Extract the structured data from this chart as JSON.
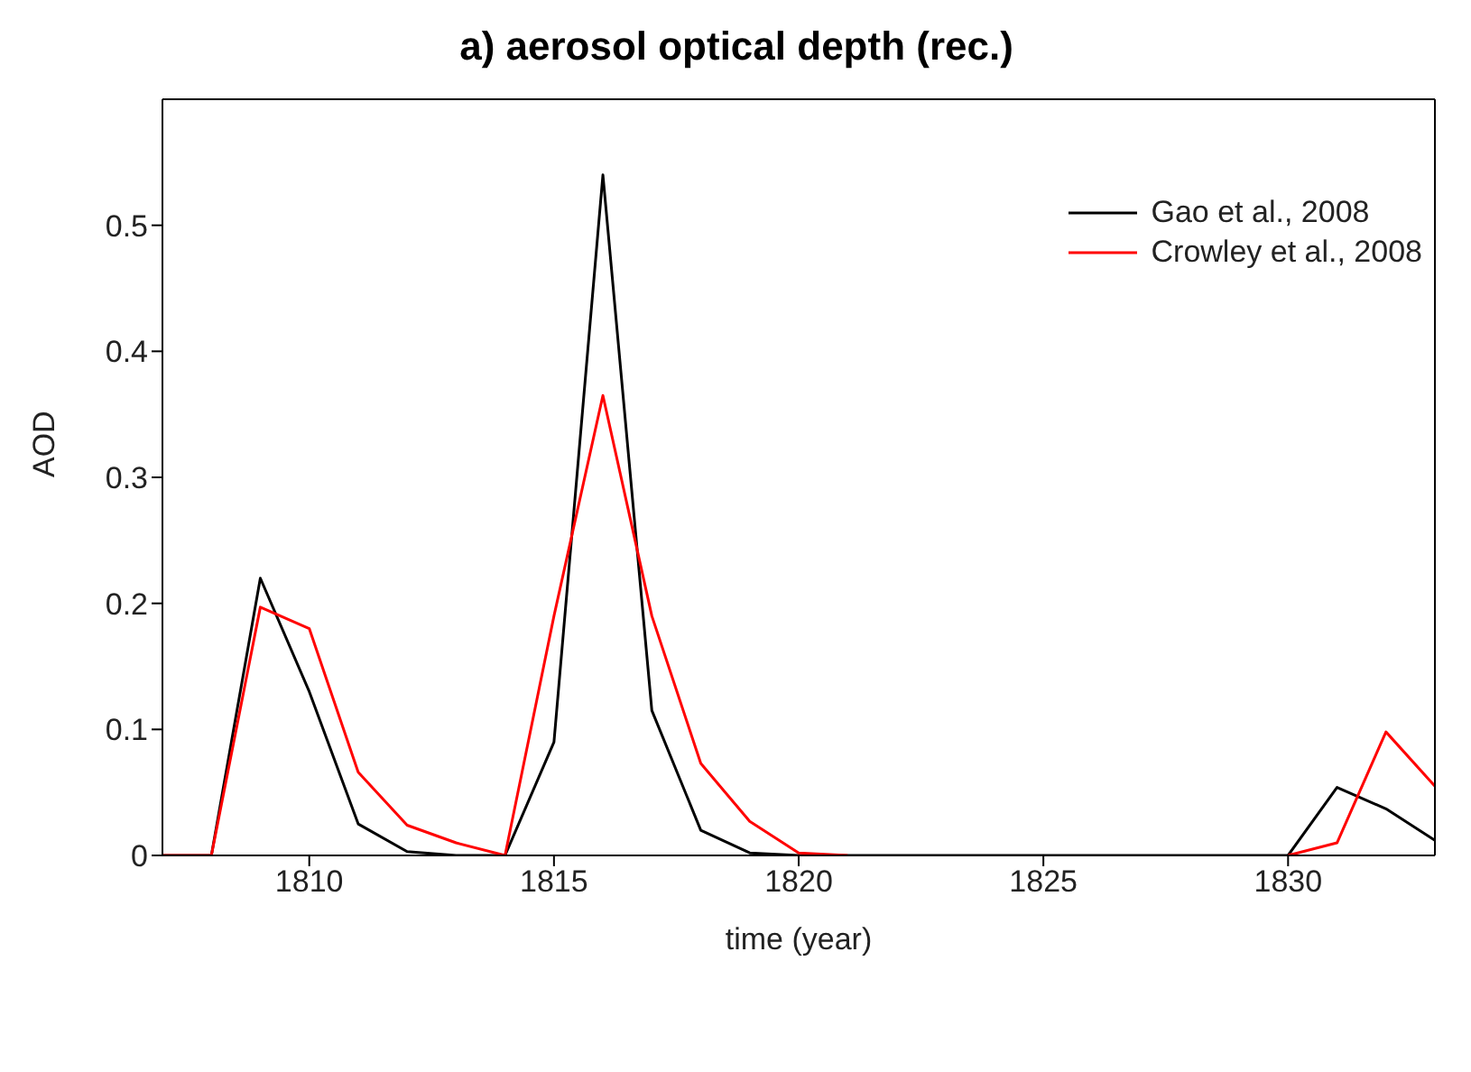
{
  "chart_data": {
    "type": "line",
    "title": "a) aerosol optical depth (rec.)",
    "xlabel": "time (year)",
    "ylabel": "AOD",
    "x": [
      1807,
      1808,
      1809,
      1810,
      1811,
      1812,
      1813,
      1814,
      1815,
      1816,
      1817,
      1818,
      1819,
      1820,
      1821,
      1822,
      1823,
      1824,
      1825,
      1826,
      1827,
      1828,
      1829,
      1830,
      1831,
      1832,
      1833
    ],
    "series": [
      {
        "name": "Gao et al., 2008",
        "color": "#000000",
        "values": [
          0,
          0,
          0.22,
          0.13,
          0.025,
          0.003,
          0,
          0,
          0.09,
          0.54,
          0.115,
          0.02,
          0.002,
          0,
          0,
          0,
          0,
          0,
          0,
          0,
          0,
          0,
          0,
          0,
          0.054,
          0.037,
          0.012
        ]
      },
      {
        "name": "Crowley et al., 2008",
        "color": "#ff0000",
        "values": [
          0,
          0,
          0.197,
          0.18,
          0.066,
          0.024,
          0.01,
          0,
          0.19,
          0.365,
          0.19,
          0.073,
          0.027,
          0.002,
          0,
          null,
          null,
          null,
          null,
          null,
          null,
          null,
          null,
          0,
          0.01,
          0.098,
          0.055
        ]
      }
    ],
    "xlim": [
      1807,
      1833
    ],
    "xticks": [
      1810,
      1815,
      1820,
      1825,
      1830
    ],
    "ylim": [
      0,
      0.6
    ],
    "yticks": [
      0,
      0.1,
      0.2,
      0.3,
      0.4,
      0.5
    ],
    "grid": false,
    "legend": "top right",
    "marker": "none",
    "line_style": "solid"
  }
}
